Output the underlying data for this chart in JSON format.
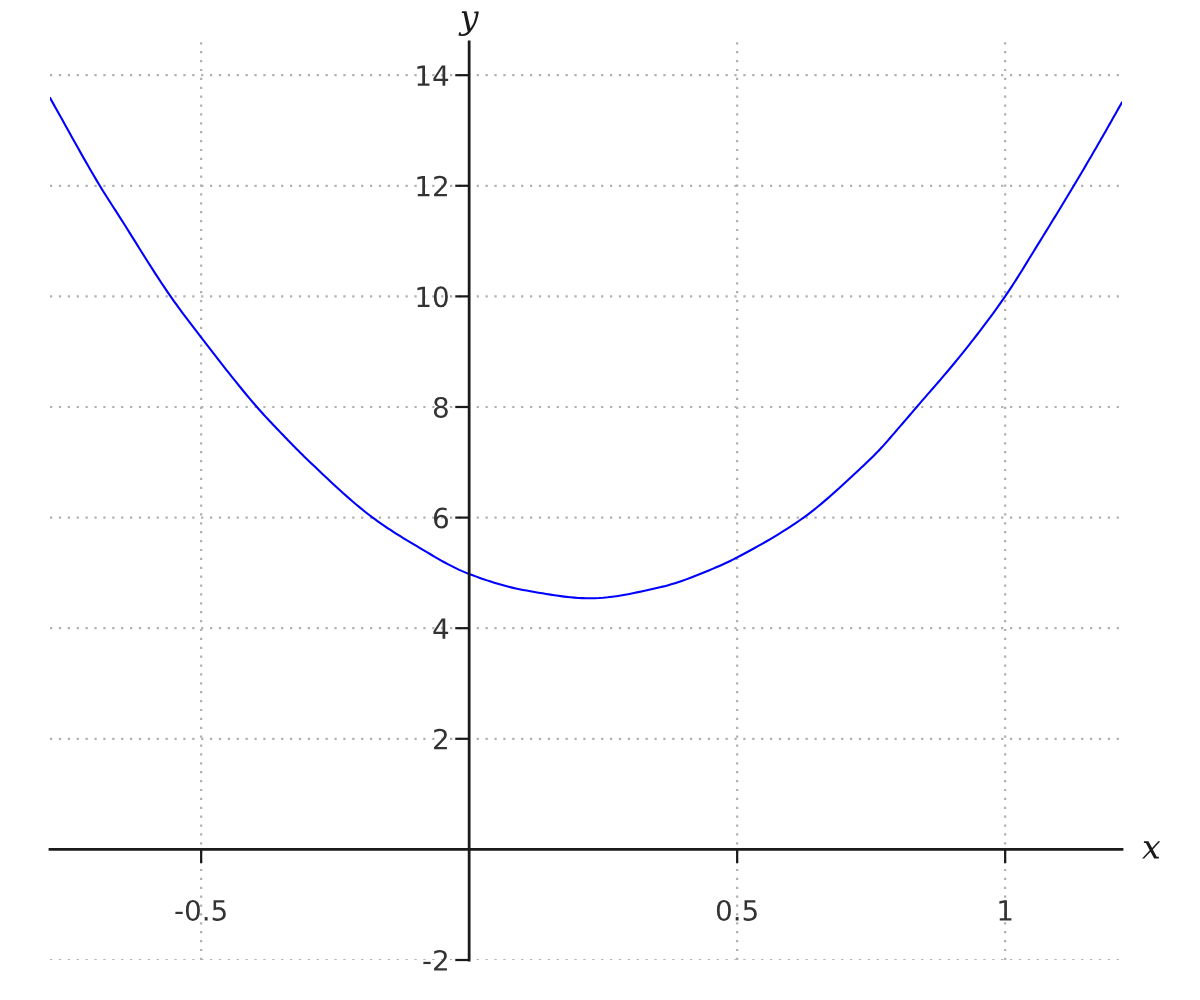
{
  "chart_data": {
    "type": "line",
    "xlabel": "x",
    "ylabel": "y",
    "x": [
      -0.782,
      -0.689,
      -0.651,
      -0.557,
      -0.5,
      -0.396,
      -0.343,
      -0.303,
      -0.18,
      -0.104,
      0.0,
      0.107,
      0.226,
      0.356,
      0.468,
      0.5,
      0.624,
      0.729,
      0.764,
      0.804,
      0.835,
      0.916,
      1.0,
      1.065,
      1.128,
      1.177,
      1.218
    ],
    "series": [
      {
        "color": "#0000ff",
        "values": [
          13.59,
          12.0,
          11.42,
          10.0,
          9.26,
          8.0,
          7.45,
          7.06,
          6.0,
          5.52,
          4.98,
          4.68,
          4.54,
          4.74,
          5.13,
          5.28,
          6.0,
          6.88,
          7.21,
          7.65,
          8.0,
          8.92,
          10.0,
          11.0,
          12.0,
          12.81,
          13.51
        ]
      }
    ],
    "xlim": [
      -0.782,
      1.218
    ],
    "ylim": [
      -2,
      14.6
    ],
    "xticks": [
      -0.5,
      0.5,
      1
    ],
    "yticks": [
      -2,
      2,
      4,
      6,
      8,
      10,
      12,
      14
    ],
    "grid": true
  }
}
